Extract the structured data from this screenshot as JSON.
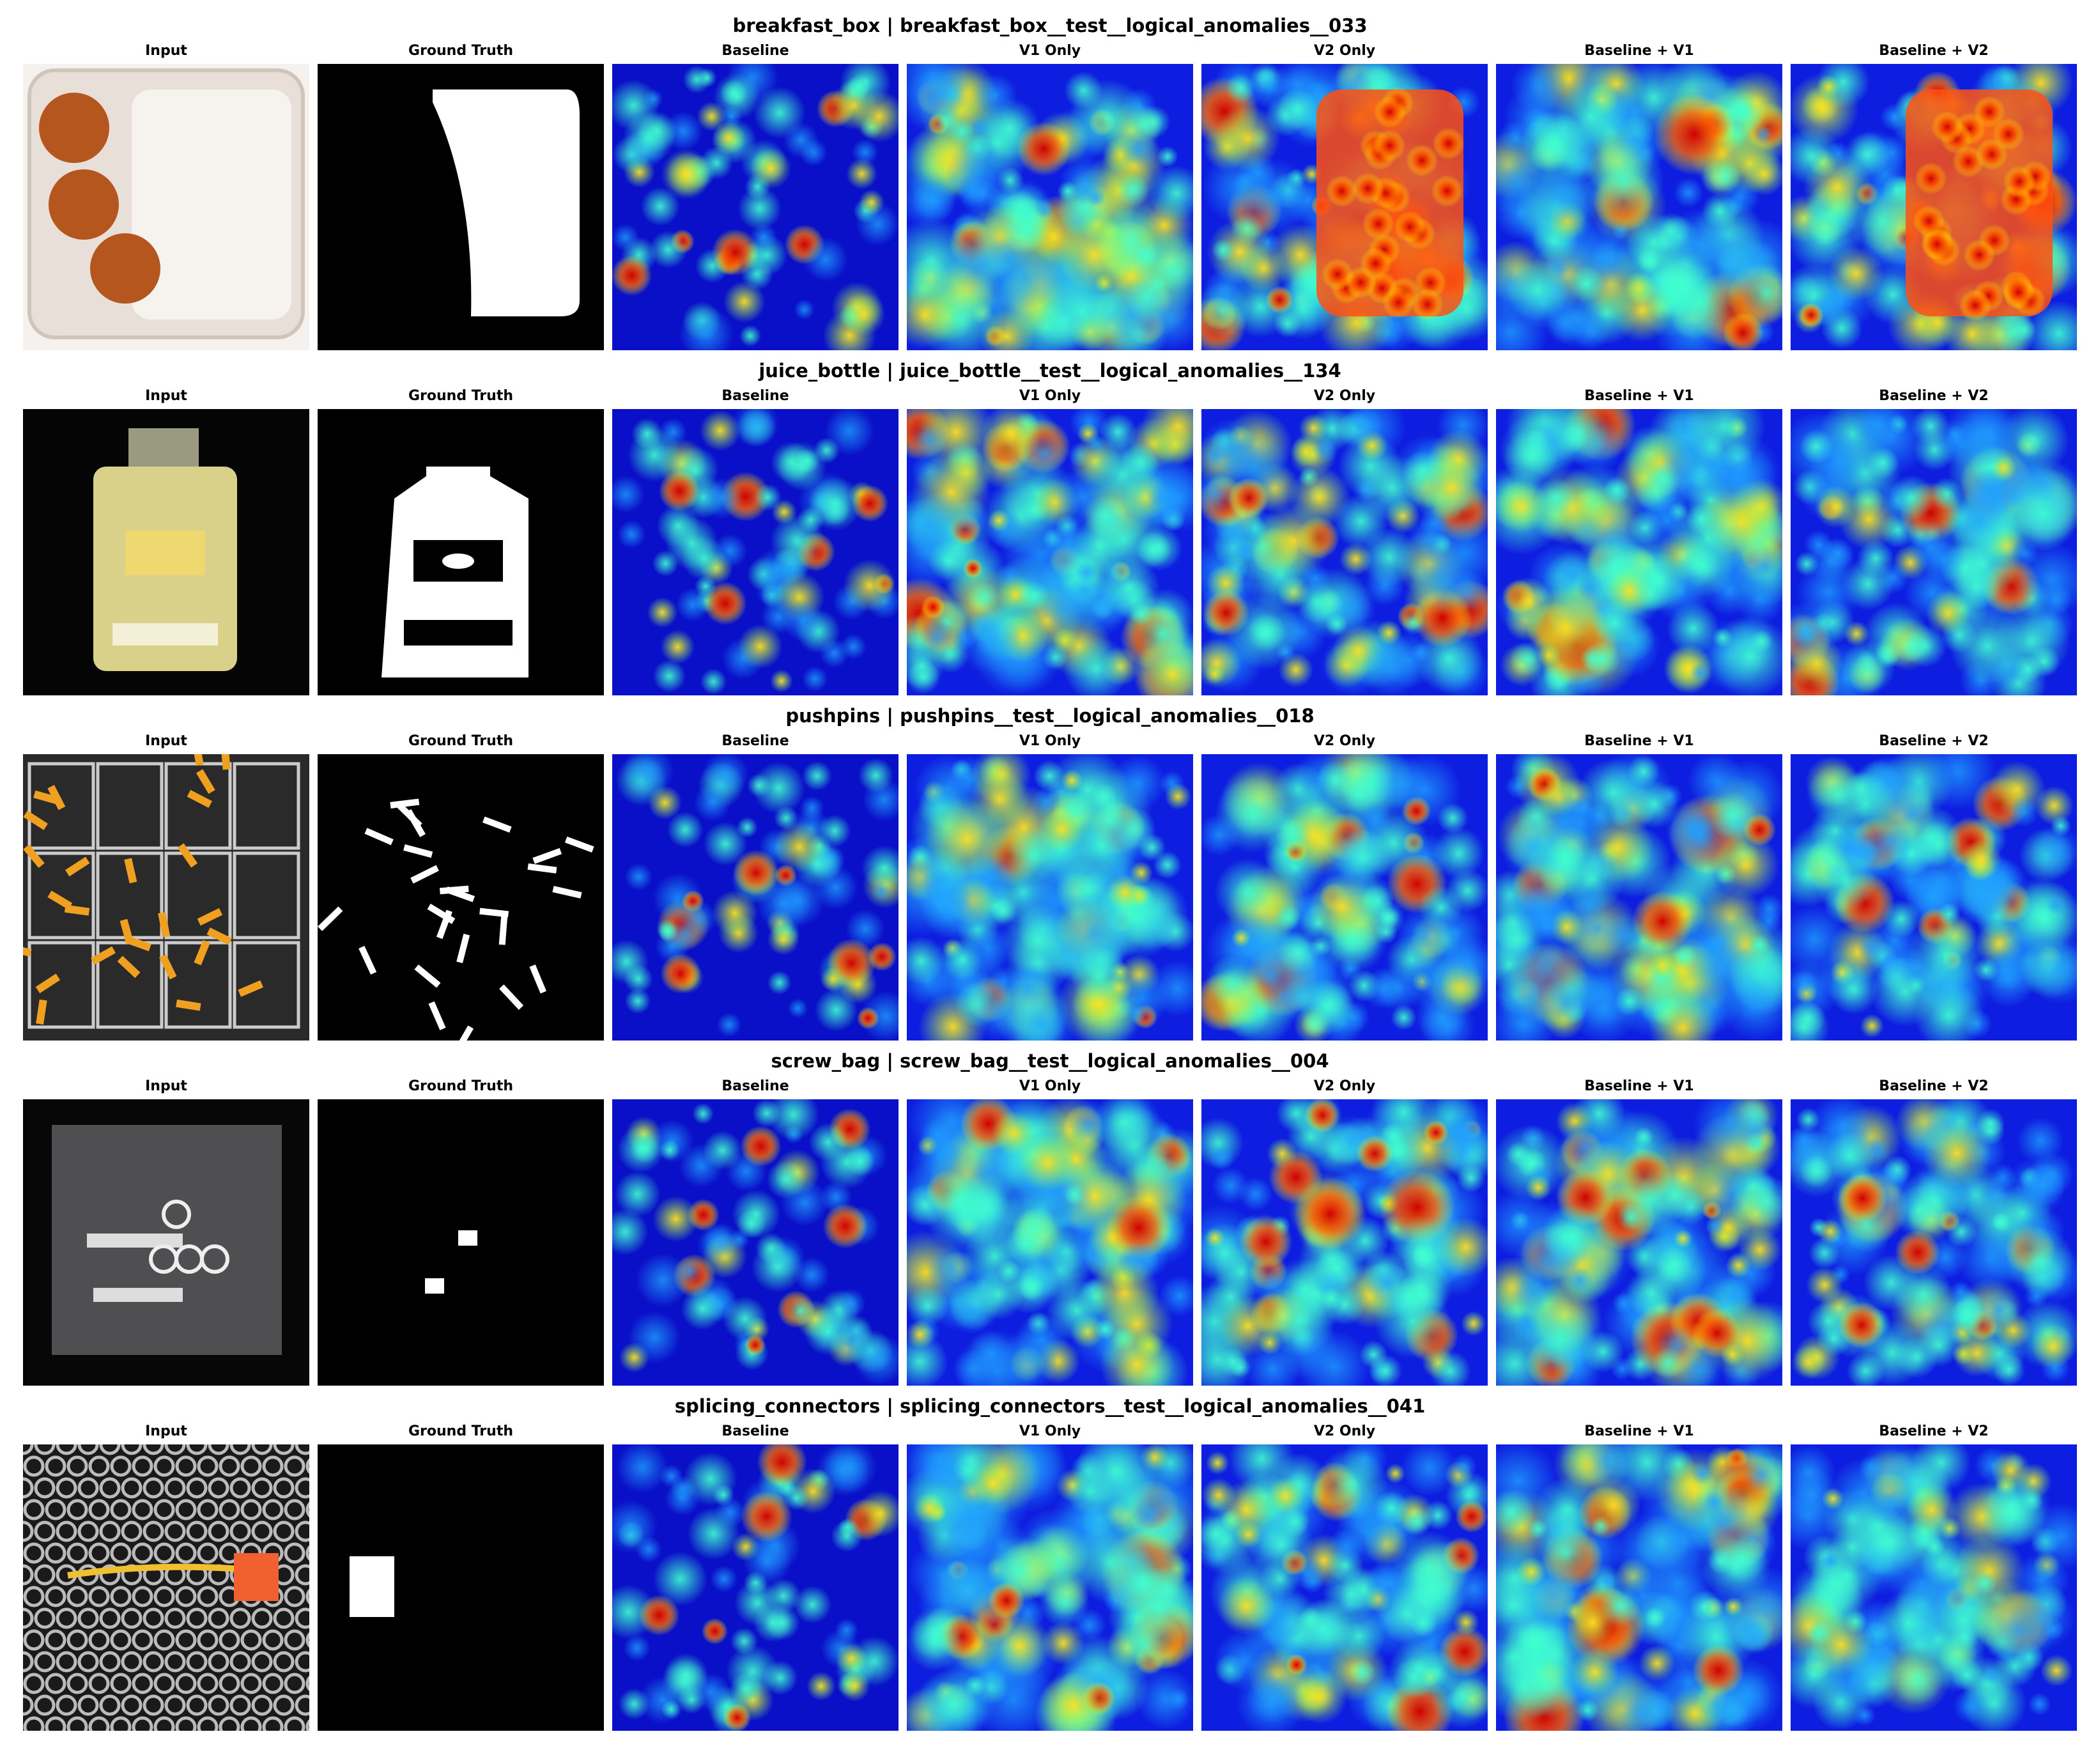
{
  "rows": [
    {
      "title": "breakfast_box | breakfast_box__test__logical_anomalies__033",
      "columns": [
        "Input",
        "Ground Truth",
        "Baseline",
        "V1 Only",
        "V2 Only",
        "Baseline + V1",
        "Baseline + V2"
      ]
    },
    {
      "title": "juice_bottle | juice_bottle__test__logical_anomalies__134",
      "columns": [
        "Input",
        "Ground Truth",
        "Baseline",
        "V1 Only",
        "V2 Only",
        "Baseline + V1",
        "Baseline + V2"
      ]
    },
    {
      "title": "pushpins | pushpins__test__logical_anomalies__018",
      "columns": [
        "Input",
        "Ground Truth",
        "Baseline",
        "V1 Only",
        "V2 Only",
        "Baseline + V1",
        "Baseline + V2"
      ]
    },
    {
      "title": "screw_bag | screw_bag__test__logical_anomalies__004",
      "columns": [
        "Input",
        "Ground Truth",
        "Baseline",
        "V1 Only",
        "V2 Only",
        "Baseline + V1",
        "Baseline + V2"
      ]
    },
    {
      "title": "splicing_connectors | splicing_connectors__test__logical_anomalies__041",
      "columns": [
        "Input",
        "Ground Truth",
        "Baseline",
        "V1 Only",
        "V2 Only",
        "Baseline + V1",
        "Baseline + V2"
      ]
    }
  ]
}
